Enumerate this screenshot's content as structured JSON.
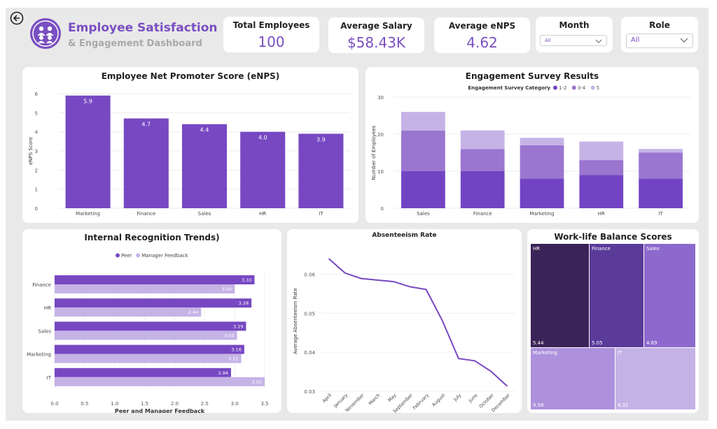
{
  "header": {
    "title_line1": "Employee Satisfaction",
    "title_line2": "& Engagement Dashboard",
    "back_icon": "arrow-left-icon",
    "logo_icon": "people-group-icon"
  },
  "kpis": [
    {
      "label": "Total Employees",
      "value": "100"
    },
    {
      "label": "Average Salary",
      "value": "$58.43K"
    },
    {
      "label": "Average eNPS",
      "value": "4.62"
    }
  ],
  "filters": {
    "month": {
      "label": "Month",
      "selected": "All"
    },
    "role": {
      "label": "Role",
      "selected": "All"
    }
  },
  "colors": {
    "accent": "#7a4fc1",
    "bar": "#7748c2",
    "light": "#c6b3e6",
    "mid": "#9a76d0",
    "dark": "#7244c4",
    "background": "#e9e9e9"
  },
  "chart_data": [
    {
      "id": "enps",
      "type": "bar",
      "title": "Employee Net Promoter Score (eNPS)",
      "xlabel": "",
      "ylabel": "eNPS Score",
      "categories": [
        "Marketing",
        "Finance",
        "Sales",
        "HR",
        "IT"
      ],
      "values": [
        5.9,
        4.7,
        4.4,
        4.0,
        3.9
      ],
      "data_labels": [
        "5.9",
        "4.7",
        "4.4",
        "4.0",
        "3.9"
      ],
      "ylim": [
        0,
        6
      ],
      "yticks": [
        0,
        1,
        2,
        3,
        4,
        5,
        6
      ]
    },
    {
      "id": "engagement",
      "type": "bar",
      "stacked": true,
      "title": "Engagement Survey Results",
      "legend_title": "Engagement Survey Category",
      "ylabel": "Number of Employees",
      "categories": [
        "Sales",
        "Finance",
        "Marketing",
        "HR",
        "IT"
      ],
      "series": [
        {
          "name": "1-2",
          "values": [
            10,
            10,
            8,
            9,
            8
          ]
        },
        {
          "name": "3-4",
          "values": [
            11,
            6,
            9,
            4,
            7
          ]
        },
        {
          "name": "5",
          "values": [
            5,
            5,
            2,
            5,
            1
          ]
        }
      ],
      "ylim": [
        0,
        30
      ],
      "yticks": [
        0,
        10,
        20,
        30
      ]
    },
    {
      "id": "recognition",
      "type": "bar",
      "orientation": "horizontal",
      "title": "Internal Recognition Trends)",
      "xlabel": "Peer and Manager Feedback",
      "categories": [
        "Finance",
        "HR",
        "Sales",
        "Marketing",
        "IT"
      ],
      "series": [
        {
          "name": "Peer",
          "values": [
            3.33,
            3.28,
            3.19,
            3.16,
            2.94
          ],
          "labels": [
            "3.33",
            "3.28",
            "3.19",
            "3.16",
            "2.94"
          ]
        },
        {
          "name": "Manager Feedback",
          "values": [
            3.0,
            2.44,
            3.04,
            3.11,
            3.5
          ],
          "labels": [
            "3.00",
            "2.44",
            "3.04",
            "3.11",
            "3.50"
          ]
        }
      ],
      "xlim": [
        0,
        3.5
      ],
      "xticks": [
        "0.0",
        "0.5",
        "1.0",
        "1.5",
        "2.0",
        "2.5",
        "3.0",
        "3.5"
      ]
    },
    {
      "id": "absenteeism",
      "type": "line",
      "title": "Absenteeism Rate",
      "ylabel": "Average Absenteeism Rate",
      "categories": [
        "April",
        "January",
        "November",
        "March",
        "May",
        "September",
        "February",
        "August",
        "July",
        "June",
        "October",
        "December"
      ],
      "values": [
        0.064,
        0.0603,
        0.0589,
        0.0585,
        0.0581,
        0.0568,
        0.0561,
        0.0481,
        0.0384,
        0.0378,
        0.0351,
        0.0313
      ],
      "ylim": [
        0.03,
        0.066
      ],
      "yticks": [
        0.03,
        0.04,
        0.05,
        0.06
      ],
      "ytick_labels": [
        "0.03",
        "0.04",
        "0.05",
        "0.06"
      ]
    },
    {
      "id": "worklife",
      "type": "treemap",
      "title": "Work-life Balance Scores",
      "items": [
        {
          "name": "HR",
          "value": "5.44"
        },
        {
          "name": "Finance",
          "value": "5.05"
        },
        {
          "name": "Sales",
          "value": "4.69"
        },
        {
          "name": "Marketing",
          "value": "4.58"
        },
        {
          "name": "IT",
          "value": "4.31"
        }
      ]
    }
  ]
}
